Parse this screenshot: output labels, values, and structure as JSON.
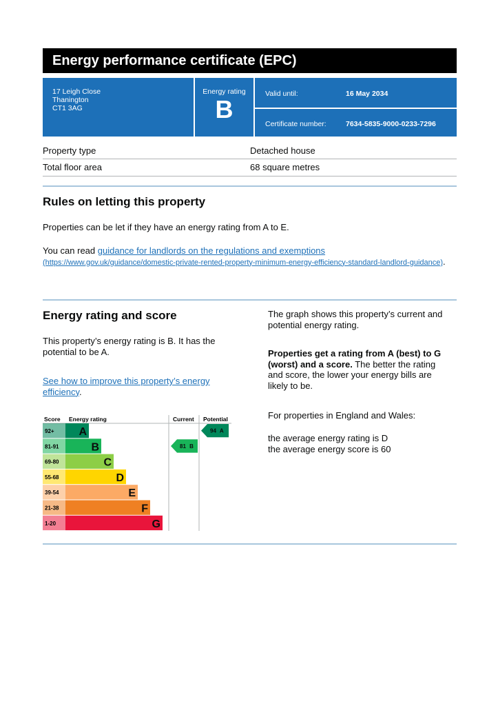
{
  "header": {
    "title": "Energy performance certificate (EPC)"
  },
  "address": [
    "17 Leigh Close",
    "Thanington",
    "CT1 3AG"
  ],
  "energy_rating": {
    "label": "Energy rating",
    "value": "B"
  },
  "valid_until": {
    "label": "Valid until:",
    "value": "16 May 2034"
  },
  "certificate_number": {
    "label": "Certificate number:",
    "value": "7634-5835-9000-0233-7296"
  },
  "property": {
    "rows": [
      [
        "Property type",
        "Detached house"
      ],
      [
        "Total floor area",
        "68 square metres"
      ]
    ]
  },
  "rules": {
    "heading": "Rules on letting this property",
    "text": "Properties can be let if they have an energy rating from A to E.",
    "read_prefix": "You can read ",
    "link": "guidance for landlords on the regulations and exemptions",
    "url": "(https://www.gov.uk/guidance/domestic-private-rented-property-minimum-energy-efficiency-standard-landlord-guidance)",
    "suffix": "."
  },
  "rating_section": {
    "heading": "Energy rating and score",
    "text": "This property’s energy rating is B. It has the potential to be A.",
    "link": "See how to improve this property’s energy efficiency",
    "link_suffix": ".",
    "graph_text": "The graph shows this property’s current and potential energy rating.",
    "bold_text": "Properties get a rating from A (best) to G (worst) and a score.",
    "rest_text": " The better the rating and score, the lower your energy bills are likely to be.",
    "region_text": "For properties in England and Wales:",
    "average_rating": "the average energy rating is D",
    "average_score": "the average energy score is 60"
  },
  "chart": {
    "headers": [
      "Score",
      "Energy rating",
      "Current",
      "Potential"
    ],
    "bands": [
      {
        "score": "92+",
        "letter": "A",
        "color": "#00875a"
      },
      {
        "score": "81-91",
        "letter": "B",
        "color": "#19b459"
      },
      {
        "score": "69-80",
        "letter": "C",
        "color": "#8dce46"
      },
      {
        "score": "55-68",
        "letter": "D",
        "color": "#ffd500"
      },
      {
        "score": "39-54",
        "letter": "E",
        "color": "#fcaa65"
      },
      {
        "score": "21-38",
        "letter": "F",
        "color": "#ef8023"
      },
      {
        "score": "1-20",
        "letter": "G",
        "color": "#e9153b"
      }
    ],
    "current": {
      "score": 81,
      "letter": "B"
    },
    "potential": {
      "score": 94,
      "letter": "A"
    }
  }
}
